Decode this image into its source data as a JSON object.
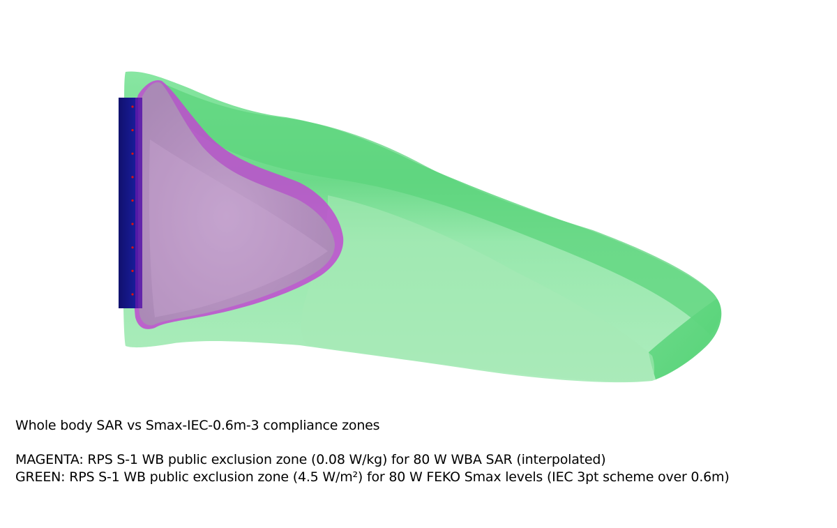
{
  "caption": {
    "title": "Whole body SAR vs Smax-IEC-0.6m-3 compliance zones",
    "magenta_line": "MAGENTA: RPS S-1 WB public exclusion zone (0.08 W/kg) for 80 W WBA SAR (interpolated)",
    "green_line": "GREEN: RPS S-1 WB public exclusion zone (4.5 W/m²) for 80 W FEKO Smax levels (IEC 3pt scheme over 0.6m)"
  },
  "colors": {
    "background": "#ffffff",
    "green_zone": "#8de8a4",
    "green_zone_dark": "#5ed67e",
    "magenta_zone": "#c04ad0",
    "magenta_zone_inner": "#b89ac2",
    "antenna_panel": "#14148a",
    "antenna_elements": "#e01010"
  },
  "antenna": {
    "element_count": 9
  }
}
